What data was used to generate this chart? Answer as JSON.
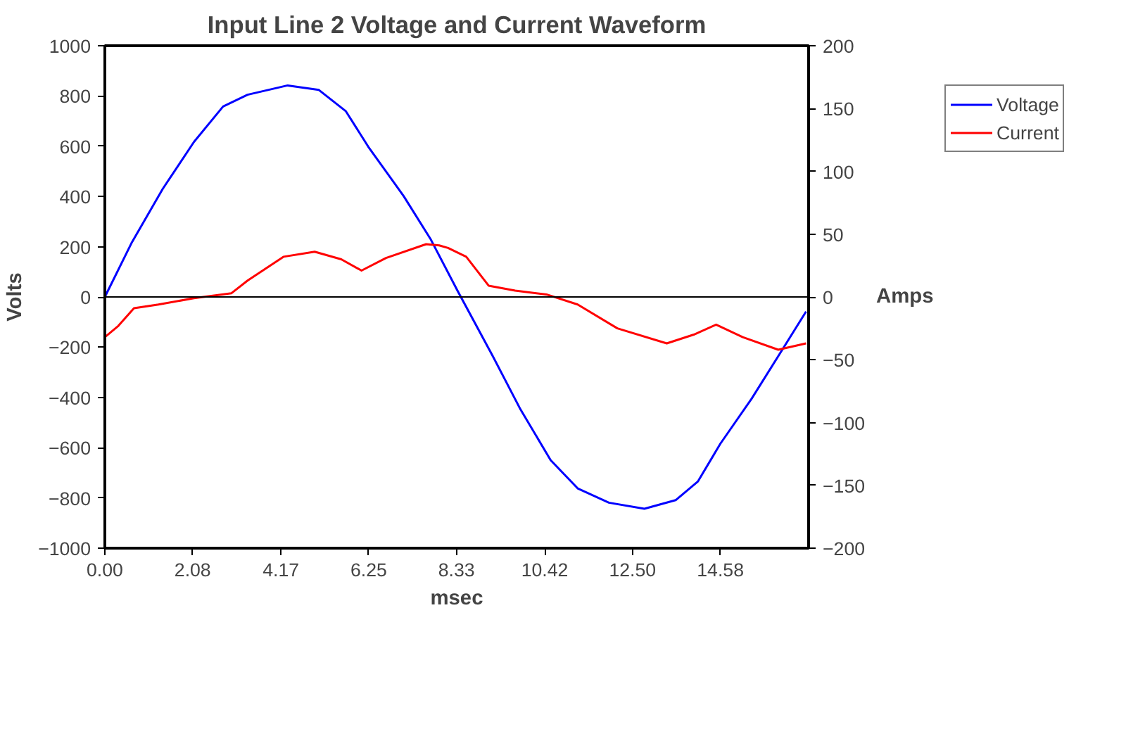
{
  "chart_data": {
    "type": "line",
    "title": "Input Line 2 Voltage and Current Waveform",
    "xlabel": "msec",
    "ylabel": "Volts",
    "y2label": "Amps",
    "xlim": [
      0,
      16.67
    ],
    "xticks": [
      {
        "value": 0,
        "label": "0.00"
      },
      2.08,
      4.17,
      6.25,
      8.33,
      10.42,
      {
        "value": 12.5,
        "label": "12.50"
      },
      14.58
    ],
    "ylim": [
      -1000,
      1000
    ],
    "yticks": [
      -1000,
      -800,
      -600,
      -400,
      -200,
      0,
      200,
      400,
      600,
      800,
      1000
    ],
    "y2lim": [
      -200,
      200
    ],
    "y2ticks": [
      -200,
      -150,
      -100,
      -50,
      0,
      50,
      100,
      150,
      200
    ],
    "grid": false,
    "legend": "right",
    "marker": "none",
    "line_style": "solid",
    "ref_lines": [
      {
        "axis": "y",
        "value": 0,
        "label": null,
        "color": "#000000"
      }
    ],
    "series": [
      {
        "name": "Voltage",
        "color": "#0000ff",
        "x": [
          0,
          0.63,
          1.37,
          2.11,
          2.8,
          3.38,
          4.33,
          5.07,
          5.71,
          6.24,
          7.08,
          7.71,
          8.35,
          9.19,
          9.83,
          10.56,
          11.2,
          11.94,
          12.78,
          13.52,
          14.05,
          14.58,
          15.32,
          15.95,
          16.61
        ],
        "values": [
          0,
          214,
          430,
          617,
          758,
          805,
          842,
          824,
          739,
          598,
          401,
          232,
          26,
          -236,
          -443,
          -650,
          -762,
          -819,
          -843,
          -809,
          -734,
          -584,
          -405,
          -236,
          -58
        ]
      },
      {
        "name": "Current",
        "color": "#ff0000",
        "axis": "y2",
        "x": [
          0,
          0.32,
          0.69,
          1.27,
          2.11,
          3.0,
          3.38,
          4.23,
          4.97,
          5.6,
          6.08,
          6.66,
          7.61,
          7.92,
          8.13,
          8.56,
          9.09,
          9.72,
          10.46,
          11.2,
          12.14,
          13.31,
          13.95,
          14.48,
          15.11,
          15.95,
          16.61
        ],
        "values": [
          -32,
          -23,
          -9,
          -6,
          -1,
          3,
          13,
          32,
          36,
          30,
          21,
          31,
          42,
          41,
          39,
          32,
          9,
          5,
          2,
          -6,
          -25,
          -37,
          -30,
          -22,
          -32,
          -42,
          -37
        ]
      }
    ]
  }
}
